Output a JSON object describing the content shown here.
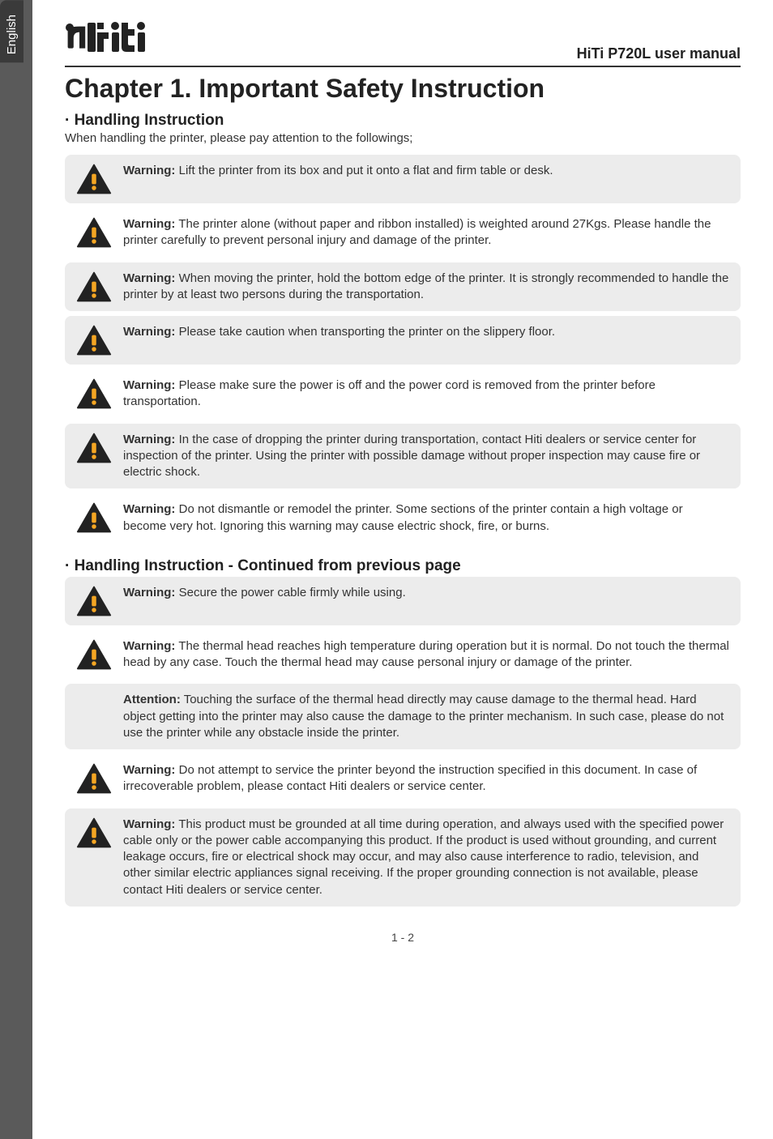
{
  "side_tab": "English",
  "logo": "hiti",
  "manual_title": "HiTi P720L user manual",
  "chapter_title": "Chapter 1. Important Safety Instruction",
  "section1": {
    "title": "· Handling Instruction",
    "intro": "When handling the printer, please pay attention to the followings;"
  },
  "section2": {
    "title": "· Handling Instruction - Continued from previous page"
  },
  "warnings1": [
    {
      "label": "Warning:",
      "text": " Lift the printer from its box and put it onto a flat and firm table or desk.",
      "shaded": true,
      "icon": true
    },
    {
      "label": "Warning:",
      "text": " The printer alone (without paper and ribbon installed) is weighted around 27Kgs. Please handle the printer carefully to prevent personal injury and damage of the printer.",
      "shaded": false,
      "icon": true
    },
    {
      "label": "Warning:",
      "text": " When moving the printer, hold the bottom edge of the printer. It is strongly recommended to handle the printer by at least two persons during the transportation.",
      "shaded": true,
      "icon": true
    },
    {
      "label": "Warning:",
      "text": " Please take caution when transporting the printer on the slippery floor.",
      "shaded": true,
      "icon": true
    },
    {
      "label": "Warning:",
      "text": " Please make sure the power is off and the power cord is removed from the printer before transportation.",
      "shaded": false,
      "icon": true
    },
    {
      "label": "Warning:",
      "text": " In the case of dropping the printer during transportation, contact Hiti dealers or service center for inspection of the printer. Using the printer with possible damage without proper inspection may cause fire or electric shock.",
      "shaded": true,
      "icon": true
    },
    {
      "label": "Warning:",
      "text": " Do not dismantle or remodel the printer. Some sections of the printer contain a high voltage or become very hot. Ignoring this warning may cause electric shock, fire, or burns.",
      "shaded": false,
      "icon": true
    }
  ],
  "warnings2": [
    {
      "label": "Warning:",
      "text": " Secure the power cable firmly while using.",
      "shaded": true,
      "icon": true
    },
    {
      "label": "Warning:",
      "text": " The thermal head reaches high temperature during operation but it is normal. Do not touch the thermal head by any case. Touch the thermal head may cause personal injury or damage of the printer.",
      "shaded": false,
      "icon": true
    },
    {
      "label": "Attention:",
      "text": " Touching the surface of the thermal head directly may cause damage to the thermal head. Hard object getting into the printer may also cause the damage to the printer mechanism. In such case, please do not use the printer while any obstacle inside the printer.",
      "shaded": true,
      "icon": false
    },
    {
      "label": "Warning:",
      "text": " Do not attempt to service the printer beyond the instruction specified in this document.  In case of irrecoverable problem, please contact Hiti dealers or service center.",
      "shaded": false,
      "icon": true
    },
    {
      "label": "Warning:",
      "text": " This product must be grounded at all time during operation, and always used with the specified power cable only or the power cable accompanying this product. If the product is used without grounding, and current leakage occurs, fire or electrical shock may occur, and may also cause interference to radio, television, and other similar electric appliances signal receiving. If the proper grounding connection is not available, please contact Hiti dealers or service center.",
      "shaded": true,
      "icon": true
    }
  ],
  "page_num": "1 - 2",
  "colors": {
    "page_bg": "#5a5a5a",
    "content_bg": "#ffffff",
    "shaded_bg": "#ececec",
    "text": "#333333",
    "icon_fill": "#222222",
    "icon_bang": "#f5a623"
  }
}
